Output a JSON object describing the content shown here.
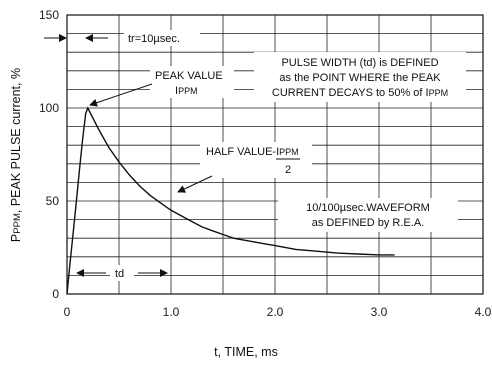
{
  "chart_data": {
    "type": "line",
    "xlabel": "t, TIME, ms",
    "ylabel": "PPPM, PEAK PULSE current, %",
    "ylabel_parts": {
      "main": "P",
      "sub": "PPM",
      "rest": ", PEAK PULSE current, %"
    },
    "xlim": [
      0,
      4.0
    ],
    "ylim": [
      0,
      150
    ],
    "x_ticks": [
      "0",
      "1.0",
      "2.0",
      "3.0",
      "4.0"
    ],
    "y_ticks": [
      "0",
      "50",
      "100",
      "150"
    ],
    "grid": true,
    "series": [
      {
        "x": [
          0,
          0.03,
          0.06,
          0.09,
          0.12,
          0.15,
          0.18,
          0.2,
          0.3,
          0.4,
          0.5,
          0.6,
          0.7,
          0.8,
          0.9,
          1.0,
          1.1,
          1.2,
          1.3,
          1.4,
          1.5,
          1.6,
          1.7,
          1.8,
          1.9,
          2.0,
          2.2,
          2.4,
          2.6,
          2.8,
          3.0,
          3.15
        ],
        "y": [
          0,
          17,
          33,
          50,
          67,
          83,
          97,
          100,
          89,
          79,
          71,
          64,
          58,
          53,
          49,
          45,
          42,
          39,
          36,
          34,
          32,
          30,
          29,
          28,
          27,
          26,
          24,
          23,
          22,
          21.5,
          21,
          21
        ]
      }
    ],
    "annotations": {
      "tr": "tr=10µsec.",
      "peak_title": "PEAK VALUE",
      "peak_sym": {
        "main": "I",
        "sub": "PPM"
      },
      "pulse_line1": "PULSE WIDTH (td) is DEFINED",
      "pulse_line2": "as the POINT WHERE the PEAK",
      "pulse_line3_main": "CURRENT DECAYS to 50% of I",
      "pulse_line3_sub": "PPM",
      "half_main": "HALF VALUE-I",
      "half_sub": "PPM",
      "half_den": "2",
      "wave_line1": "10/100µsec.WAVEFORM",
      "wave_line2": "as DEFINED by R.E.A.",
      "td": "td"
    }
  }
}
